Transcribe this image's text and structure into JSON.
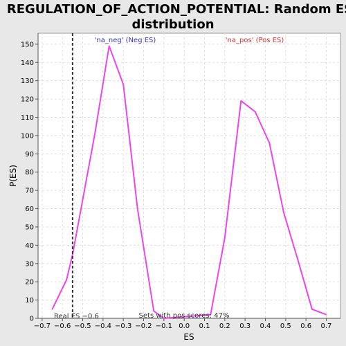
{
  "chart_data": {
    "type": "line",
    "title_line1": "REGULATION_OF_ACTION_POTENTIAL: Random ES",
    "title_line2": "distribution",
    "xlabel": "ES",
    "ylabel": "P(ES)",
    "xlim": [
      -0.72,
      0.77
    ],
    "ylim": [
      0,
      156
    ],
    "x_ticks": [
      -0.7,
      -0.6,
      -0.5,
      -0.4,
      -0.3,
      -0.2,
      -0.1,
      0.0,
      0.1,
      0.2,
      0.3,
      0.4,
      0.5,
      0.6,
      0.7
    ],
    "x_tick_labels": [
      "−0.7",
      "−0.6",
      "−0.5",
      "−0.4",
      "−0.3",
      "−0.2",
      "−0.1",
      "0.0",
      "0.1",
      "0.2",
      "0.3",
      "0.4",
      "0.5",
      "0.6",
      "0.7"
    ],
    "y_ticks": [
      0,
      10,
      20,
      30,
      40,
      50,
      60,
      70,
      80,
      90,
      100,
      110,
      120,
      130,
      140,
      150
    ],
    "y_tick_labels": [
      "0",
      "10",
      "20",
      "30",
      "40",
      "50",
      "60",
      "70",
      "80",
      "90",
      "100",
      "110",
      "120",
      "130",
      "140",
      "150"
    ],
    "grid": true,
    "series": [
      {
        "color": "#ee44ee",
        "points": [
          [
            -0.65,
            5
          ],
          [
            -0.58,
            21
          ],
          [
            -0.55,
            35
          ],
          [
            -0.44,
            101
          ],
          [
            -0.37,
            149
          ],
          [
            -0.3,
            128
          ],
          [
            -0.23,
            60
          ],
          [
            -0.15,
            4
          ],
          [
            -0.1,
            0
          ],
          [
            0.13,
            2
          ],
          [
            0.2,
            44
          ],
          [
            0.28,
            119
          ],
          [
            0.35,
            113
          ],
          [
            0.42,
            96
          ],
          [
            0.49,
            58
          ],
          [
            0.56,
            32
          ],
          [
            0.63,
            5
          ],
          [
            0.7,
            2
          ]
        ]
      }
    ],
    "real_es": {
      "value": -0.55,
      "label": "Real ES −0.6"
    },
    "annotations": {
      "neg_label": "'na_neg' (Neg ES)",
      "neg_color": "#3333cc",
      "pos_label": "'na_pos' (Pos ES)",
      "pos_color": "#dd3333",
      "sets_label": "Sets with pos scores: 47%"
    }
  }
}
